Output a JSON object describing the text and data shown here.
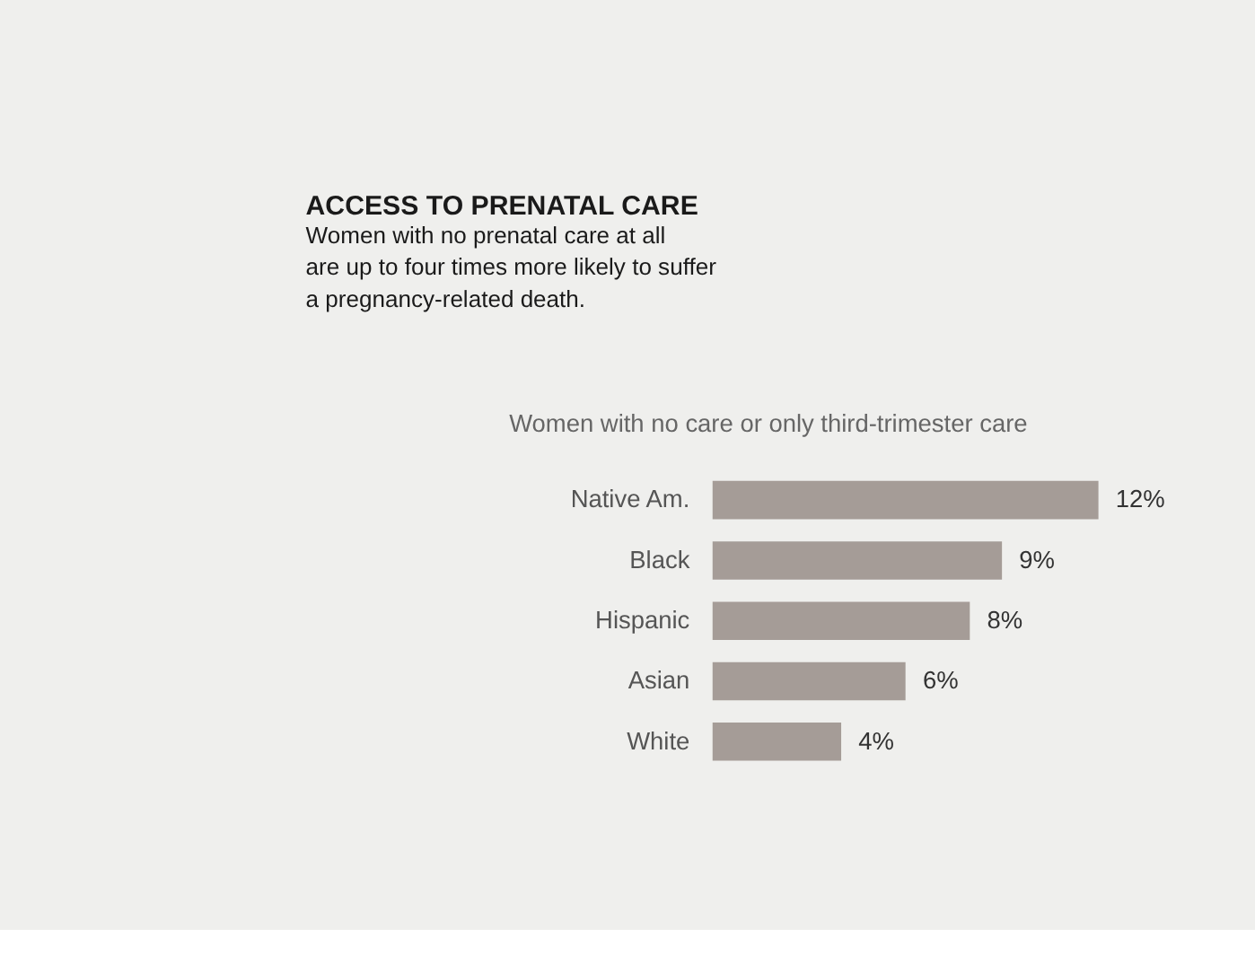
{
  "chart_data": {
    "type": "bar",
    "orientation": "horizontal",
    "title": "ACCESS TO PRENATAL CARE",
    "subtitle": "Women with no prenatal care at all\nare up to four times more likely to suffer\na pregnancy-related death.",
    "annotations": [
      "Women with no care or only third-trimester care"
    ],
    "categories": [
      "Native Am.",
      "Black",
      "Hispanic",
      "Asian",
      "White"
    ],
    "values": [
      12,
      9,
      8,
      6,
      4
    ],
    "value_labels": [
      "12%",
      "9%",
      "8%",
      "6%",
      "4%"
    ],
    "color": "#a59c97",
    "grid": false
  }
}
